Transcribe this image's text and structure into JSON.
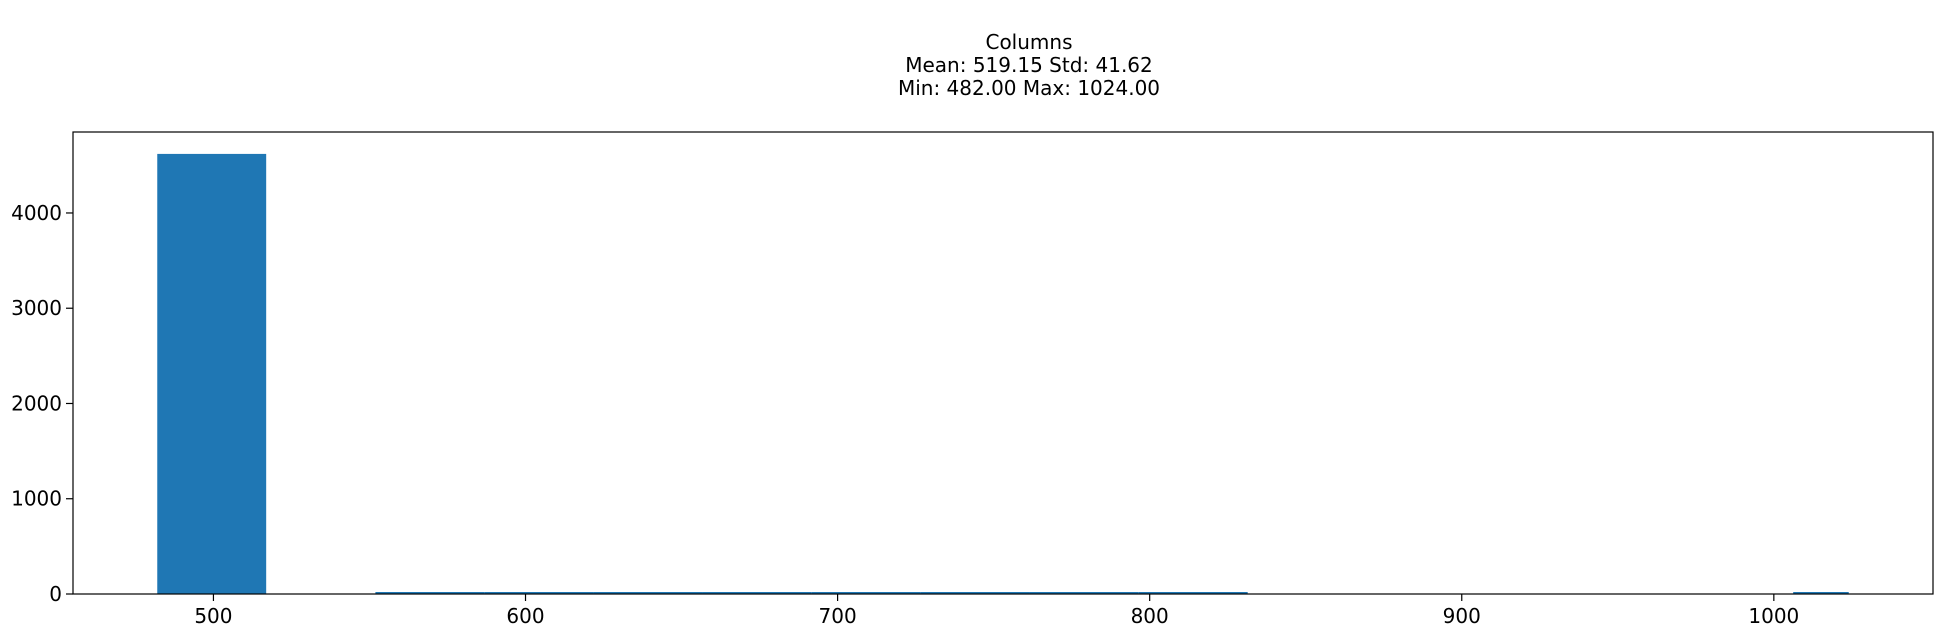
{
  "chart_data": {
    "type": "bar",
    "title": "Columns",
    "subtitle_lines": [
      "Mean: 519.15 Std: 41.62",
      "Min: 482.00 Max: 1024.00"
    ],
    "xlabel": "",
    "ylabel": "",
    "xlim": [
      455,
      1051
    ],
    "ylim": [
      0,
      4850
    ],
    "x_ticks": [
      500,
      600,
      700,
      800,
      900,
      1000
    ],
    "y_ticks": [
      0,
      1000,
      2000,
      3000,
      4000
    ],
    "grid": false,
    "bar_color": "#1f77b4",
    "bins": [
      {
        "x0": 482.0,
        "x1": 516.9,
        "count": 4620
      },
      {
        "x0": 516.9,
        "x1": 551.9,
        "count": 0
      },
      {
        "x0": 551.9,
        "x1": 586.8,
        "count": 10
      },
      {
        "x0": 586.8,
        "x1": 621.8,
        "count": 10
      },
      {
        "x0": 621.8,
        "x1": 656.7,
        "count": 8
      },
      {
        "x0": 656.7,
        "x1": 691.7,
        "count": 18
      },
      {
        "x0": 691.7,
        "x1": 726.6,
        "count": 16
      },
      {
        "x0": 726.6,
        "x1": 761.5,
        "count": 14
      },
      {
        "x0": 761.5,
        "x1": 796.5,
        "count": 10
      },
      {
        "x0": 796.5,
        "x1": 831.4,
        "count": 6
      },
      {
        "x0": 831.4,
        "x1": 866.4,
        "count": 0
      },
      {
        "x0": 866.4,
        "x1": 901.3,
        "count": 0
      },
      {
        "x0": 901.3,
        "x1": 936.3,
        "count": 0
      },
      {
        "x0": 936.3,
        "x1": 971.2,
        "count": 0
      },
      {
        "x0": 971.2,
        "x1": 1006.2,
        "count": 0
      },
      {
        "x0": 1006.2,
        "x1": 1024.0,
        "count": 1
      }
    ]
  }
}
